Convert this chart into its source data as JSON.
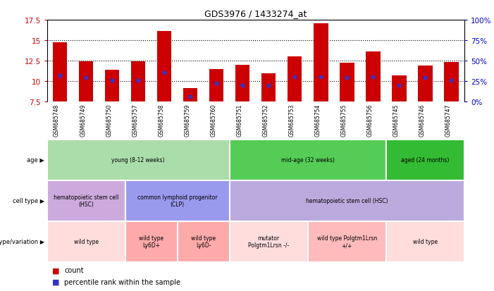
{
  "title": "GDS3976 / 1433274_at",
  "samples": [
    "GSM685748",
    "GSM685749",
    "GSM685750",
    "GSM685757",
    "GSM685758",
    "GSM685759",
    "GSM685760",
    "GSM685751",
    "GSM685752",
    "GSM685753",
    "GSM685754",
    "GSM685755",
    "GSM685756",
    "GSM685745",
    "GSM685746",
    "GSM685747"
  ],
  "bar_values": [
    14.7,
    12.4,
    11.4,
    12.4,
    16.1,
    9.1,
    11.5,
    12.0,
    10.9,
    13.0,
    17.1,
    12.2,
    13.6,
    10.7,
    11.9,
    12.3
  ],
  "percentile_values": [
    10.7,
    10.4,
    10.1,
    10.1,
    11.0,
    8.1,
    9.7,
    9.5,
    9.5,
    10.5,
    10.5,
    10.4,
    10.5,
    9.5,
    10.4,
    10.1
  ],
  "bar_color": "#cc0000",
  "percentile_color": "#3333cc",
  "ymin": 7.5,
  "ymax": 17.5,
  "yticks": [
    7.5,
    10.0,
    12.5,
    15.0,
    17.5
  ],
  "y2ticks_labels": [
    "0%",
    "25%",
    "50%",
    "75%",
    "100%"
  ],
  "y2ticks_vals": [
    7.5,
    10.0,
    12.5,
    15.0,
    17.5
  ],
  "age_groups": [
    {
      "label": "young (8-12 weeks)",
      "start": 0,
      "end": 6,
      "color": "#aaddaa"
    },
    {
      "label": "mid-age (32 weeks)",
      "start": 7,
      "end": 12,
      "color": "#55cc55"
    },
    {
      "label": "aged (24 months)",
      "start": 13,
      "end": 15,
      "color": "#33bb33"
    }
  ],
  "cell_type_groups": [
    {
      "label": "hematopoietic stem cell\n(HSC)",
      "start": 0,
      "end": 2,
      "color": "#ccaadd"
    },
    {
      "label": "common lymphoid progenitor\n(CLP)",
      "start": 3,
      "end": 6,
      "color": "#9999ee"
    },
    {
      "label": "hematopoietic stem cell (HSC)",
      "start": 7,
      "end": 15,
      "color": "#bbaadd"
    }
  ],
  "genotype_groups": [
    {
      "label": "wild type",
      "start": 0,
      "end": 2,
      "color": "#ffdddd"
    },
    {
      "label": "wild type\nLy6D+",
      "start": 3,
      "end": 4,
      "color": "#ffaaaa"
    },
    {
      "label": "wild type\nLy6D-",
      "start": 5,
      "end": 6,
      "color": "#ffaaaa"
    },
    {
      "label": "mutator\nPolgtm1Lrsn -/-",
      "start": 7,
      "end": 9,
      "color": "#ffdddd"
    },
    {
      "label": "wild type Polgtm1Lrsn\n+/+",
      "start": 10,
      "end": 12,
      "color": "#ffbbbb"
    },
    {
      "label": "wild type",
      "start": 13,
      "end": 15,
      "color": "#ffdddd"
    }
  ],
  "row_labels": [
    "age",
    "cell type",
    "genotype/variation"
  ],
  "legend_count_color": "#cc0000",
  "legend_pct_color": "#3333cc",
  "bg_color": "#ffffff",
  "tick_label_color_left": "#cc0000",
  "tick_label_color_right": "#0000cc",
  "xtick_bg_color": "#cccccc",
  "grid_yticks": [
    10.0,
    12.5,
    15.0
  ]
}
